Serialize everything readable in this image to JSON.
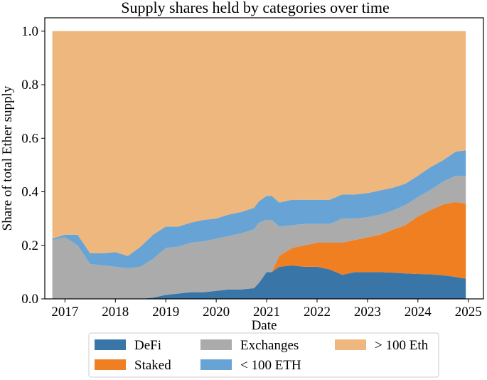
{
  "chart_data": {
    "type": "area",
    "stacked": true,
    "title": "Supply shares held by categories over time",
    "xlabel": "Date",
    "ylabel": "Share of total Ether supply",
    "xlim": [
      2016.6,
      2025.3
    ],
    "ylim": [
      0,
      1.05
    ],
    "x_ticks": [
      2017,
      2018,
      2019,
      2020,
      2021,
      2022,
      2023,
      2024,
      2025
    ],
    "x_tick_labels": [
      "2017",
      "2018",
      "2019",
      "2020",
      "2021",
      "2022",
      "2023",
      "2024",
      "2025"
    ],
    "y_ticks": [
      0.0,
      0.2,
      0.4,
      0.6,
      0.8,
      1.0
    ],
    "y_tick_labels": [
      "0.0",
      "0.2",
      "0.4",
      "0.6",
      "0.8",
      "1.0"
    ],
    "legend_position": "bottom-center",
    "x": [
      2016.75,
      2017.0,
      2017.25,
      2017.5,
      2017.75,
      2018.0,
      2018.25,
      2018.5,
      2018.75,
      2019.0,
      2019.25,
      2019.5,
      2019.75,
      2020.0,
      2020.25,
      2020.5,
      2020.75,
      2020.85,
      2021.0,
      2021.1,
      2021.25,
      2021.5,
      2021.75,
      2022.0,
      2022.25,
      2022.5,
      2022.75,
      2023.0,
      2023.25,
      2023.5,
      2023.75,
      2024.0,
      2024.25,
      2024.5,
      2024.75,
      2024.95
    ],
    "series": [
      {
        "name": "DeFi",
        "color": "#3a75a8",
        "values": [
          0,
          0,
          0,
          0,
          0,
          0,
          0,
          0,
          0.005,
          0.015,
          0.02,
          0.025,
          0.025,
          0.03,
          0.035,
          0.035,
          0.04,
          0.06,
          0.1,
          0.1,
          0.12,
          0.125,
          0.12,
          0.12,
          0.11,
          0.09,
          0.1,
          0.1,
          0.1,
          0.098,
          0.095,
          0.093,
          0.092,
          0.088,
          0.082,
          0.075
        ]
      },
      {
        "name": "Staked",
        "color": "#f07f22",
        "values": [
          0,
          0,
          0,
          0,
          0,
          0,
          0,
          0,
          0,
          0,
          0,
          0,
          0,
          0,
          0,
          0,
          0,
          0,
          0,
          0,
          0.04,
          0.065,
          0.08,
          0.09,
          0.1,
          0.12,
          0.12,
          0.13,
          0.14,
          0.16,
          0.18,
          0.215,
          0.24,
          0.265,
          0.28,
          0.28
        ]
      },
      {
        "name": "Exchanges",
        "color": "#ababab",
        "values": [
          0.22,
          0.23,
          0.2,
          0.13,
          0.125,
          0.12,
          0.115,
          0.12,
          0.145,
          0.175,
          0.175,
          0.185,
          0.19,
          0.195,
          0.2,
          0.21,
          0.22,
          0.225,
          0.195,
          0.195,
          0.11,
          0.085,
          0.08,
          0.07,
          0.07,
          0.09,
          0.08,
          0.075,
          0.075,
          0.072,
          0.075,
          0.072,
          0.075,
          0.085,
          0.098,
          0.105
        ]
      },
      {
        "name": "< 100 ETH",
        "color": "#67a4d5",
        "values": [
          0.005,
          0.01,
          0.04,
          0.04,
          0.045,
          0.055,
          0.045,
          0.075,
          0.09,
          0.08,
          0.075,
          0.075,
          0.08,
          0.075,
          0.08,
          0.08,
          0.08,
          0.08,
          0.09,
          0.09,
          0.09,
          0.095,
          0.09,
          0.09,
          0.09,
          0.09,
          0.09,
          0.09,
          0.09,
          0.085,
          0.08,
          0.08,
          0.085,
          0.08,
          0.09,
          0.095
        ]
      },
      {
        "name": "> 100 Eth",
        "color": "#eeb77d",
        "values": [
          0.775,
          0.76,
          0.76,
          0.83,
          0.83,
          0.825,
          0.84,
          0.805,
          0.76,
          0.73,
          0.73,
          0.715,
          0.705,
          0.7,
          0.685,
          0.675,
          0.66,
          0.635,
          0.615,
          0.615,
          0.64,
          0.63,
          0.63,
          0.63,
          0.63,
          0.61,
          0.61,
          0.605,
          0.595,
          0.585,
          0.57,
          0.54,
          0.508,
          0.482,
          0.45,
          0.445
        ]
      }
    ],
    "legend_order": [
      "DeFi",
      "Exchanges",
      "> 100 Eth",
      "Staked",
      "< 100 ETH"
    ]
  }
}
